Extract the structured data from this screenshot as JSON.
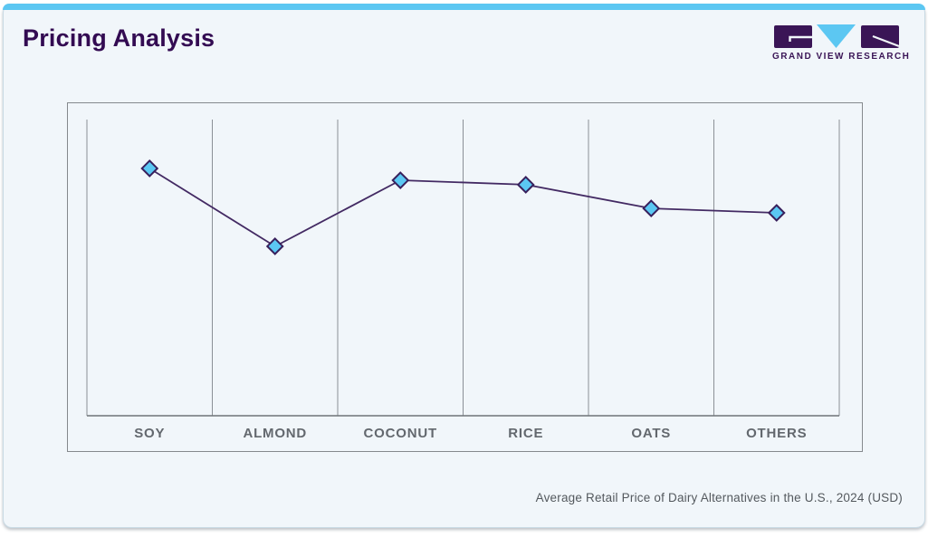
{
  "page": {
    "title": "Pricing Analysis",
    "caption": "Average Retail Price of Dairy Alternatives in the U.S., 2024 (USD)"
  },
  "brand": {
    "name": "GRAND VIEW RESEARCH",
    "logo_letters": [
      "G",
      "V",
      "R"
    ]
  },
  "colors": {
    "accent_blue": "#5cc7f2",
    "title_purple": "#330b52",
    "brand_purple": "#3a1556",
    "card_bg": "#f1f6fa",
    "card_border": "#c9dae4",
    "panel_border": "#85898d",
    "gridline": "#8b9096",
    "axis": "#6f7478",
    "line": "#432a63",
    "marker_fill": "#5bc8f3",
    "marker_stroke": "#38205c",
    "label": "#63686e",
    "caption": "#54595e"
  },
  "chart_data": {
    "type": "line",
    "title": "Pricing Analysis",
    "caption": "Average Retail Price of Dairy Alternatives in the U.S., 2024 (USD)",
    "categories": [
      "SOY",
      "ALMOND",
      "COCONUT",
      "RICE",
      "OATS",
      "OTHERS"
    ],
    "values": [
      0.835,
      0.572,
      0.795,
      0.78,
      0.7,
      0.685
    ],
    "values_note": "relative heights on unlabeled y-axis (no tick values shown in source)",
    "xlabel": "",
    "ylabel": "",
    "ylim": [
      0,
      1
    ],
    "grid": "vertical gridlines only, one per category boundary",
    "legend": "none",
    "marker": "diamond"
  }
}
